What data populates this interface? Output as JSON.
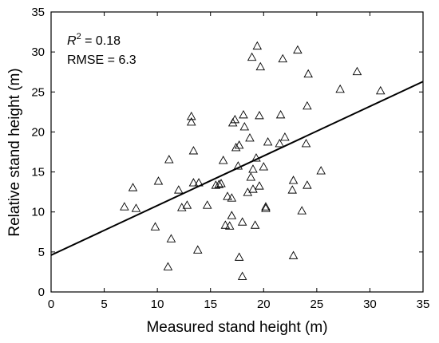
{
  "chart_data": {
    "type": "scatter",
    "title": "",
    "xlabel": "Measured stand height (m)",
    "ylabel": "Relative stand height (m)",
    "xlim": [
      0,
      35
    ],
    "ylim": [
      0,
      35
    ],
    "xticks": [
      "0",
      "5",
      "10",
      "15",
      "20",
      "25",
      "30",
      "35"
    ],
    "yticks": [
      "0",
      "5",
      "10",
      "15",
      "20",
      "25",
      "30",
      "35"
    ],
    "grid": false,
    "marker": "open-triangle",
    "annotations": {
      "r2_symbol": "R",
      "r2_superscript": "2",
      "r2_value": " = 0.18",
      "rmse": "RMSE = 6.3"
    },
    "fit_line": {
      "x": [
        0,
        35
      ],
      "y": [
        4.6,
        26.3
      ]
    },
    "points": [
      {
        "x": 6.9,
        "y": 10.7
      },
      {
        "x": 7.7,
        "y": 13.1
      },
      {
        "x": 8.0,
        "y": 10.5
      },
      {
        "x": 9.8,
        "y": 8.2
      },
      {
        "x": 10.1,
        "y": 13.9
      },
      {
        "x": 11.0,
        "y": 3.2
      },
      {
        "x": 11.1,
        "y": 16.6
      },
      {
        "x": 11.3,
        "y": 6.7
      },
      {
        "x": 12.0,
        "y": 12.8
      },
      {
        "x": 12.3,
        "y": 10.6
      },
      {
        "x": 12.8,
        "y": 10.9
      },
      {
        "x": 13.2,
        "y": 22.0
      },
      {
        "x": 13.2,
        "y": 21.3
      },
      {
        "x": 13.4,
        "y": 17.7
      },
      {
        "x": 13.4,
        "y": 13.7
      },
      {
        "x": 13.8,
        "y": 5.3
      },
      {
        "x": 13.9,
        "y": 13.7
      },
      {
        "x": 14.7,
        "y": 10.9
      },
      {
        "x": 15.5,
        "y": 13.4
      },
      {
        "x": 15.8,
        "y": 13.5
      },
      {
        "x": 16.0,
        "y": 13.6
      },
      {
        "x": 16.2,
        "y": 16.5
      },
      {
        "x": 16.6,
        "y": 12.0
      },
      {
        "x": 16.4,
        "y": 8.4
      },
      {
        "x": 16.8,
        "y": 8.3
      },
      {
        "x": 17.0,
        "y": 11.8
      },
      {
        "x": 17.0,
        "y": 9.6
      },
      {
        "x": 17.1,
        "y": 21.2
      },
      {
        "x": 17.3,
        "y": 21.6
      },
      {
        "x": 17.4,
        "y": 18.1
      },
      {
        "x": 17.7,
        "y": 4.4
      },
      {
        "x": 17.7,
        "y": 18.4
      },
      {
        "x": 17.6,
        "y": 15.8
      },
      {
        "x": 18.0,
        "y": 2.0
      },
      {
        "x": 18.0,
        "y": 8.8
      },
      {
        "x": 18.1,
        "y": 22.2
      },
      {
        "x": 18.2,
        "y": 20.7
      },
      {
        "x": 18.5,
        "y": 12.5
      },
      {
        "x": 18.7,
        "y": 19.3
      },
      {
        "x": 18.8,
        "y": 14.4
      },
      {
        "x": 18.9,
        "y": 29.4
      },
      {
        "x": 19.0,
        "y": 12.9
      },
      {
        "x": 19.0,
        "y": 15.4
      },
      {
        "x": 19.2,
        "y": 8.4
      },
      {
        "x": 19.3,
        "y": 16.8
      },
      {
        "x": 19.4,
        "y": 30.8
      },
      {
        "x": 19.6,
        "y": 22.1
      },
      {
        "x": 19.6,
        "y": 13.3
      },
      {
        "x": 19.7,
        "y": 28.2
      },
      {
        "x": 20.0,
        "y": 15.7
      },
      {
        "x": 20.2,
        "y": 10.7
      },
      {
        "x": 20.2,
        "y": 10.5
      },
      {
        "x": 20.4,
        "y": 18.8
      },
      {
        "x": 21.5,
        "y": 18.6
      },
      {
        "x": 21.6,
        "y": 22.2
      },
      {
        "x": 21.8,
        "y": 29.2
      },
      {
        "x": 22.0,
        "y": 19.4
      },
      {
        "x": 22.7,
        "y": 12.8
      },
      {
        "x": 22.8,
        "y": 14.0
      },
      {
        "x": 22.8,
        "y": 4.6
      },
      {
        "x": 23.2,
        "y": 30.3
      },
      {
        "x": 23.6,
        "y": 10.2
      },
      {
        "x": 24.0,
        "y": 18.6
      },
      {
        "x": 24.1,
        "y": 13.4
      },
      {
        "x": 24.1,
        "y": 23.3
      },
      {
        "x": 24.2,
        "y": 27.3
      },
      {
        "x": 25.4,
        "y": 15.2
      },
      {
        "x": 27.2,
        "y": 25.4
      },
      {
        "x": 28.8,
        "y": 27.6
      },
      {
        "x": 31.0,
        "y": 25.2
      }
    ]
  }
}
